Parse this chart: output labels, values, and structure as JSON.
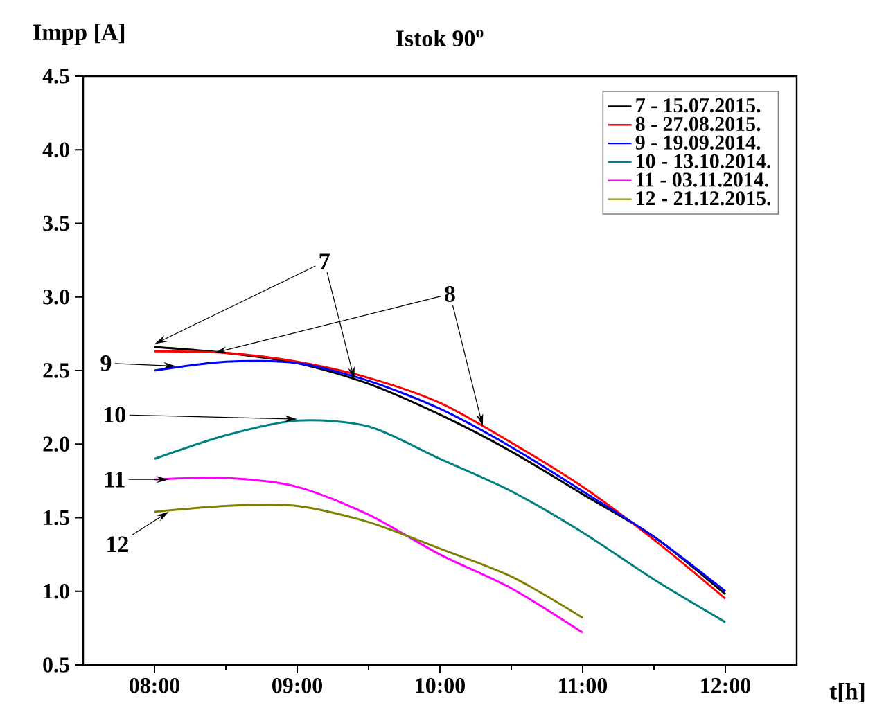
{
  "chart_data": {
    "type": "line",
    "title": "Istok 90$^{o}$",
    "xlabel": "t[h]",
    "ylabel": "Impp [A]",
    "xlim": [
      7.5,
      12.5
    ],
    "ylim": [
      0.5,
      4.5
    ],
    "xticks": [
      {
        "value": 8,
        "label": "08:00"
      },
      {
        "value": 9,
        "label": "09:00"
      },
      {
        "value": 10,
        "label": "10:00"
      },
      {
        "value": 11,
        "label": "11:00"
      },
      {
        "value": 12,
        "label": "12:00"
      }
    ],
    "yticks": [
      0.5,
      {
        "value": 1,
        "label": "1.0"
      },
      1.5,
      {
        "value": 2,
        "label": "2.0"
      },
      2.5,
      {
        "value": 3,
        "label": "3.0"
      },
      3.5,
      {
        "value": 4,
        "label": "4.0"
      },
      4.5
    ],
    "grid": false,
    "legend": "top right",
    "marker": "none",
    "line_style": "solid",
    "series": [
      {
        "name": "7 -  15.07.2015.",
        "color": "#000000",
        "x": [
          8,
          8.5,
          9,
          9.5,
          10,
          10.5,
          11,
          11.5,
          12
        ],
        "values": [
          2.66,
          2.62,
          2.55,
          2.41,
          2.2,
          1.95,
          1.66,
          1.37,
          0.98
        ]
      },
      {
        "name": "8 -  27.08.2015.",
        "color": "#ff0000",
        "x": [
          8,
          8.5,
          9,
          9.5,
          10,
          10.5,
          11,
          11.5,
          12
        ],
        "values": [
          2.63,
          2.62,
          2.56,
          2.45,
          2.28,
          2.01,
          1.71,
          1.35,
          0.95
        ]
      },
      {
        "name": "9 -  19.09.2014.",
        "color": "#0000ff",
        "x": [
          8,
          8.5,
          9,
          9.5,
          10,
          10.5,
          11,
          11.5,
          12
        ],
        "values": [
          2.5,
          2.56,
          2.55,
          2.43,
          2.24,
          1.98,
          1.68,
          1.37,
          1.0
        ]
      },
      {
        "name": "10 - 13.10.2014.",
        "color": "#008080",
        "x": [
          8,
          8.5,
          9,
          9.5,
          10,
          10.5,
          11,
          11.5,
          12
        ],
        "values": [
          1.9,
          2.06,
          2.16,
          2.12,
          1.9,
          1.68,
          1.4,
          1.08,
          0.79
        ]
      },
      {
        "name": "11 - 03.11.2014.",
        "color": "#ff00ff",
        "x": [
          8,
          8.5,
          9,
          9.5,
          10,
          10.5,
          11
        ],
        "values": [
          1.76,
          1.77,
          1.71,
          1.52,
          1.25,
          1.02,
          0.72
        ]
      },
      {
        "name": "12 - 21.12.2015.",
        "color": "#808000",
        "x": [
          8,
          8.5,
          9,
          9.5,
          10,
          10.5,
          11
        ],
        "values": [
          1.54,
          1.58,
          1.58,
          1.47,
          1.29,
          1.1,
          0.82
        ]
      }
    ],
    "annotations": [
      {
        "text": "7",
        "x": 8.0,
        "y": 2.68
      },
      {
        "text": "8",
        "x": 8.42,
        "y": 2.62
      },
      {
        "text": "9",
        "x": 8.15,
        "y": 2.53
      },
      {
        "text": "10",
        "x": 9.0,
        "y": 2.17
      },
      {
        "text": "11",
        "x": 8.1,
        "y": 1.76
      },
      {
        "text": "12",
        "x": 8.1,
        "y": 1.54
      }
    ]
  }
}
